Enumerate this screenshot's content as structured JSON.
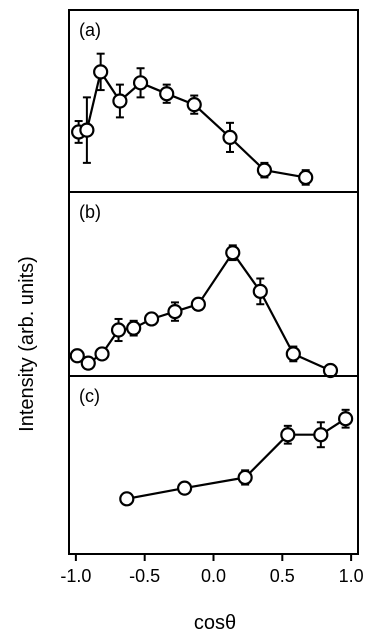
{
  "figure": {
    "ylabel": "Intensity (arb. units)",
    "xlabel": "cosθ",
    "x_ticks": [
      "-1.0",
      "-0.5",
      "0.0",
      "0.5",
      "1.0"
    ]
  },
  "chart_data": [
    {
      "type": "line",
      "panel_label": "(a)",
      "xlim": [
        -1.05,
        1.05
      ],
      "ylim": [
        0,
        1
      ],
      "series": [
        {
          "x": [
            -0.98,
            -0.92,
            -0.82,
            -0.68,
            -0.53,
            -0.34,
            -0.14,
            0.12,
            0.37,
            0.67
          ],
          "y": [
            0.33,
            0.34,
            0.66,
            0.5,
            0.6,
            0.54,
            0.48,
            0.3,
            0.12,
            0.08
          ],
          "err": [
            0.06,
            0.18,
            0.1,
            0.09,
            0.08,
            0.05,
            0.05,
            0.08,
            0.04,
            0.04
          ]
        }
      ]
    },
    {
      "type": "line",
      "panel_label": "(b)",
      "xlim": [
        -1.05,
        1.05
      ],
      "ylim": [
        0,
        1
      ],
      "series": [
        {
          "x": [
            -0.99,
            -0.91,
            -0.81,
            -0.69,
            -0.58,
            -0.45,
            -0.28,
            -0.11,
            0.14,
            0.34,
            0.58,
            0.85
          ],
          "y": [
            0.11,
            0.07,
            0.12,
            0.25,
            0.26,
            0.31,
            0.35,
            0.39,
            0.67,
            0.46,
            0.12,
            0.03
          ],
          "err": [
            0.02,
            0.03,
            0.03,
            0.06,
            0.04,
            0.02,
            0.05,
            0.03,
            0.04,
            0.07,
            0.04,
            0.02
          ]
        }
      ]
    },
    {
      "type": "line",
      "panel_label": "(c)",
      "xlim": [
        -1.05,
        1.05
      ],
      "ylim": [
        0,
        1
      ],
      "series": [
        {
          "x": [
            -0.63,
            -0.21,
            0.23,
            0.54,
            0.78,
            0.96
          ],
          "y": [
            0.31,
            0.37,
            0.43,
            0.67,
            0.67,
            0.76
          ],
          "err": [
            0.02,
            0.02,
            0.04,
            0.05,
            0.07,
            0.05
          ]
        }
      ]
    }
  ]
}
